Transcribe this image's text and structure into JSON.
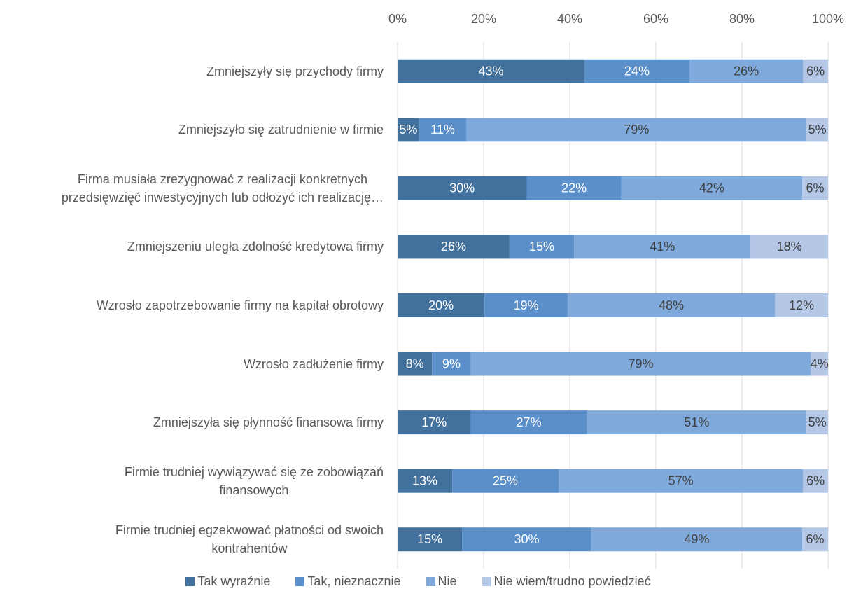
{
  "chart_data": {
    "type": "stacked_barh",
    "categories": [
      "Zmniejszyły się przychody firmy",
      "Zmniejszyło się zatrudnienie w firmie",
      "Firma musiała zrezygnować z realizacji konkretnych\nprzedsięwzięć inwestycyjnych lub odłożyć ich realizację…",
      "Zmniejszeniu uległa zdolność kredytowa firmy",
      "Wzrosło zapotrzebowanie firmy na kapitał obrotowy",
      "Wzrosło zadłużenie firmy",
      "Zmniejszyła się płynność finansowa firmy",
      "Firmie trudniej wywiązywać się ze zobowiązań\nfinansowych",
      "Firmie trudniej egzekwować płatności od swoich\nkontrahentów"
    ],
    "series": [
      {
        "name": "Tak wyraźnie",
        "color": "#41719c",
        "values": [
          43.4,
          5,
          30,
          26,
          20.2,
          8,
          17,
          12.7,
          15
        ],
        "value_labels": [
          "43%",
          "5%",
          "30%",
          "26%",
          "20%",
          "8%",
          "17%",
          "13%",
          "15%"
        ]
      },
      {
        "name": "Tak, nieznacznie",
        "color": "#5b8fc9",
        "values": [
          24.4,
          11,
          22,
          15,
          19.3,
          9,
          27,
          24.7,
          30
        ],
        "value_labels": [
          "24%",
          "11%",
          "22%",
          "15%",
          "19%",
          "9%",
          "27%",
          "25%",
          "30%"
        ]
      },
      {
        "name": "Nie",
        "color": "#7faadb",
        "values": [
          26.4,
          79,
          42,
          41,
          48.2,
          79,
          51,
          56.8,
          49
        ],
        "value_labels": [
          "26%",
          "79%",
          "42%",
          "41%",
          "48%",
          "79%",
          "51%",
          "57%",
          "49%"
        ]
      },
      {
        "name": "Nie wiem/trudno powiedzieć",
        "color": "#b4c7e7",
        "values": [
          5.8,
          5,
          6,
          18,
          12.3,
          4,
          5,
          5.8,
          6
        ],
        "value_labels": [
          "6%",
          "5%",
          "6%",
          "18%",
          "12%",
          "4%",
          "5%",
          "6%",
          "6%"
        ]
      }
    ],
    "xlim": [
      0,
      100
    ],
    "xticks": [
      {
        "value": 0,
        "label": "0%"
      },
      {
        "value": 20,
        "label": "20%"
      },
      {
        "value": 40,
        "label": "40%"
      },
      {
        "value": 60,
        "label": "60%"
      },
      {
        "value": 80,
        "label": "80%"
      },
      {
        "value": 100,
        "label": "100%"
      }
    ],
    "grid": true,
    "legend": "bottom"
  }
}
